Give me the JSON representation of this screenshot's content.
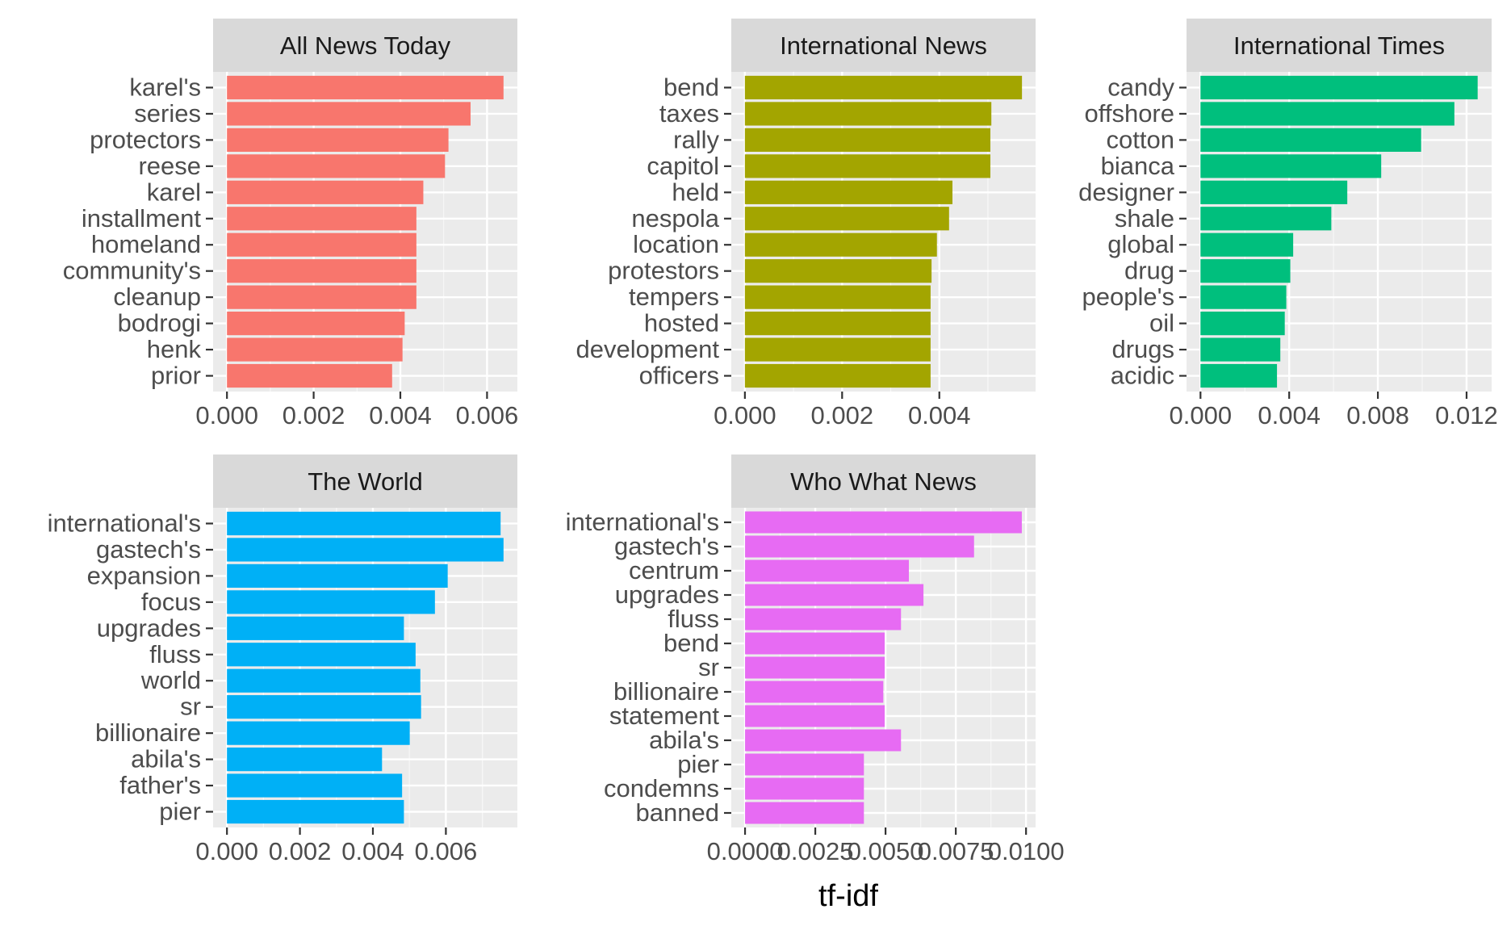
{
  "xlabel": "tf-idf",
  "colors": {
    "panel_bg": "#EBEBEB",
    "strip_bg": "#D9D9D9",
    "grid_major": "#FFFFFF",
    "grid_minor": "#F7F7F7",
    "tick_text": "#4D4D4D",
    "strip_text": "#1A1A1A"
  },
  "chart_data": [
    {
      "type": "bar",
      "orientation": "horizontal",
      "title": "All News Today",
      "color": "#F8766D",
      "categories": [
        "karel's",
        "series",
        "protectors",
        "reese",
        "karel",
        "installment",
        "homeland",
        "community's",
        "cleanup",
        "bodrogi",
        "henk",
        "prior"
      ],
      "values": [
        0.00638,
        0.00562,
        0.00511,
        0.00503,
        0.00453,
        0.00437,
        0.00437,
        0.00437,
        0.00437,
        0.0041,
        0.00405,
        0.00381
      ],
      "xlim": [
        -0.00032,
        0.0067
      ],
      "ticks": [
        0.0,
        0.002,
        0.004,
        0.006
      ],
      "tick_labels": [
        "0.000",
        "0.002",
        "0.004",
        "0.006"
      ]
    },
    {
      "type": "bar",
      "orientation": "horizontal",
      "title": "International News",
      "color": "#A3A500",
      "categories": [
        "bend",
        "taxes",
        "rally",
        "capitol",
        "held",
        "nespola",
        "location",
        "protestors",
        "tempers",
        "hosted",
        "development",
        "officers"
      ],
      "values": [
        0.0057,
        0.00507,
        0.00505,
        0.00505,
        0.00427,
        0.0042,
        0.00395,
        0.00384,
        0.00382,
        0.00382,
        0.00382,
        0.00382
      ],
      "xlim": [
        -0.00028,
        0.00598
      ],
      "ticks": [
        0.0,
        0.002,
        0.004
      ],
      "tick_labels": [
        "0.000",
        "0.002",
        "0.004"
      ]
    },
    {
      "type": "bar",
      "orientation": "horizontal",
      "title": "International Times",
      "color": "#00BF7D",
      "categories": [
        "candy",
        "offshore",
        "cotton",
        "bianca",
        "designer",
        "shale",
        "global",
        "drug",
        "people's",
        "oil",
        "drugs",
        "acidic"
      ],
      "values": [
        0.0125,
        0.01145,
        0.00995,
        0.00815,
        0.00662,
        0.0059,
        0.00418,
        0.00405,
        0.00387,
        0.0038,
        0.0036,
        0.00345
      ],
      "xlim": [
        -0.00063,
        0.01313
      ],
      "ticks": [
        0.0,
        0.004,
        0.008,
        0.012
      ],
      "tick_labels": [
        "0.000",
        "0.004",
        "0.008",
        "0.012"
      ]
    },
    {
      "type": "bar",
      "orientation": "horizontal",
      "title": "The World",
      "color": "#00B0F6",
      "categories": [
        "international's",
        "gastech's",
        "expansion",
        "focus",
        "upgrades",
        "fluss",
        "world",
        "sr",
        "billionaire",
        "abila's",
        "father's",
        "pier"
      ],
      "values": [
        0.0075,
        0.00758,
        0.00605,
        0.0057,
        0.00485,
        0.00517,
        0.0053,
        0.00532,
        0.00501,
        0.00425,
        0.0048,
        0.00485
      ],
      "xlim": [
        -0.00038,
        0.00796
      ],
      "ticks": [
        0.0,
        0.002,
        0.004,
        0.006
      ],
      "tick_labels": [
        "0.000",
        "0.002",
        "0.004",
        "0.006"
      ]
    },
    {
      "type": "bar",
      "orientation": "horizontal",
      "title": "Who What News",
      "color": "#E76BF3",
      "categories": [
        "international's",
        "gastech's",
        "centrum",
        "upgrades",
        "fluss",
        "bend",
        "sr",
        "billionaire",
        "statement",
        "abila's",
        "pier",
        "condemns",
        "banned"
      ],
      "values": [
        0.00985,
        0.00815,
        0.00583,
        0.00635,
        0.00555,
        0.00497,
        0.00497,
        0.00492,
        0.00497,
        0.00555,
        0.00423,
        0.00423,
        0.00423
      ],
      "xlim": [
        -0.00049,
        0.01034
      ],
      "ticks": [
        0.0,
        0.0025,
        0.005,
        0.0075,
        0.01
      ],
      "tick_labels": [
        "0.0000",
        "0.0025",
        "0.0050",
        "0.0075",
        "0.0100"
      ]
    }
  ]
}
